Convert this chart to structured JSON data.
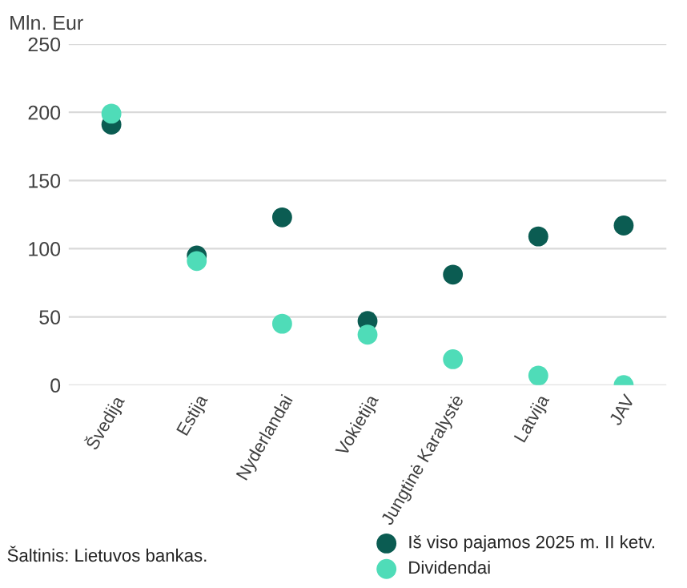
{
  "chart_data": {
    "type": "scatter",
    "ylabel": "Mln. Eur",
    "categories": [
      "Švedija",
      "Estija",
      "Nyderlandai",
      "Vokietija",
      "Jungtinė Karalystė",
      "Latvija",
      "JAV"
    ],
    "series": [
      {
        "name": "Iš viso pajamos 2025 m. II ketv.",
        "color": "#0b5c52",
        "values": [
          191,
          95,
          123,
          47,
          81,
          109,
          117
        ]
      },
      {
        "name": "Dividendai",
        "color": "#4fdcb8",
        "values": [
          199,
          91,
          45,
          37,
          19,
          7,
          0
        ]
      }
    ],
    "ylim": [
      0,
      250
    ],
    "yticks": [
      0,
      50,
      100,
      150,
      200,
      250
    ],
    "grid": "y",
    "legend": "bottom",
    "marker": "circle",
    "annotations": [
      "Šaltinis: Lietuvos bankas."
    ]
  }
}
